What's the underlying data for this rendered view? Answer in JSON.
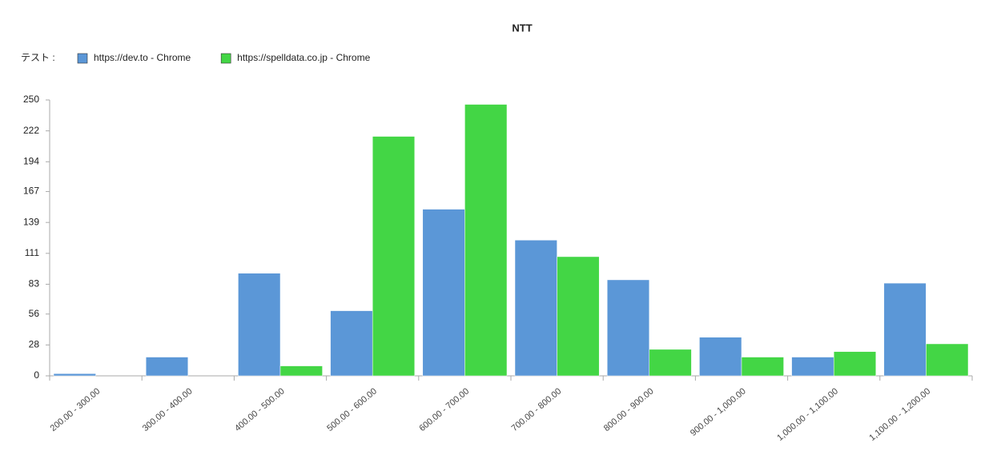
{
  "chart_data": {
    "type": "bar",
    "title": "NTT",
    "legend_title": "テスト :",
    "categories": [
      "200.00 - 300.00",
      "300.00 - 400.00",
      "400.00 - 500.00",
      "500.00 - 600.00",
      "600.00 - 700.00",
      "700.00 - 800.00",
      "800.00 - 900.00",
      "900.00 - 1,000.00",
      "1,000.00 - 1,100.00",
      "1,100.00 - 1,200.00"
    ],
    "series": [
      {
        "name": "https://dev.to - Chrome",
        "color": "#5b97d7",
        "values": [
          2,
          17,
          93,
          59,
          151,
          123,
          87,
          35,
          17,
          84
        ]
      },
      {
        "name": "https://spelldata.co.jp - Chrome",
        "color": "#43d645",
        "values": [
          0,
          0,
          9,
          217,
          246,
          108,
          24,
          17,
          22,
          29
        ]
      }
    ],
    "ylim": [
      0,
      250
    ],
    "yticks": [
      0,
      28,
      56,
      83,
      111,
      139,
      167,
      194,
      222,
      250
    ],
    "legend": "top-left",
    "grid": false
  }
}
